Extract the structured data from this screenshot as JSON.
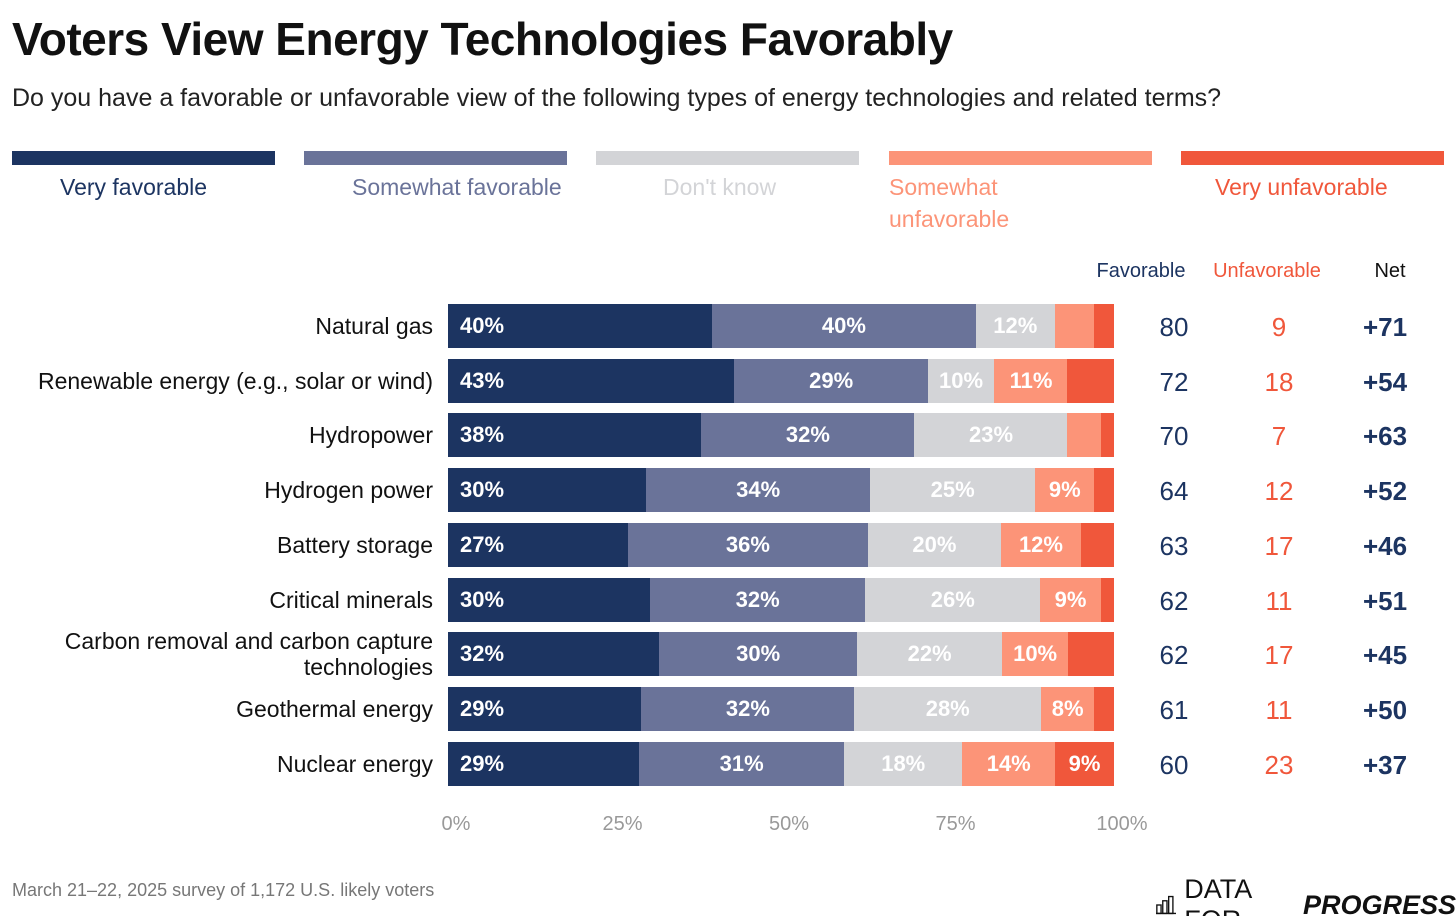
{
  "title": "Voters View Energy Technologies Favorably",
  "subtitle": "Do you have a favorable or unfavorable view of the following types of energy technologies and related terms?",
  "footer": "March 21–22, 2025 survey of 1,172 U.S. likely voters",
  "logo": {
    "icon": "bar-chart-icon",
    "text_plain": "DATA FOR",
    "text_bold": "PROGRESS"
  },
  "columns": {
    "favorable": "Favorable",
    "unfavorable": "Unfavorable",
    "net": "Net"
  },
  "chart_data": {
    "type": "stacked-bar-horizontal",
    "title": "Voters View Energy Technologies Favorably",
    "xlim": [
      0,
      100
    ],
    "xticks": [
      "0%",
      "25%",
      "50%",
      "75%",
      "100%"
    ],
    "legend_placement": "top",
    "series": [
      {
        "name": "Very favorable",
        "color": "#1c3461"
      },
      {
        "name": "Somewhat favorable",
        "color": "#6a7399"
      },
      {
        "name": "Don't know",
        "color": "#d3d4d7"
      },
      {
        "name": "Somewhat unfavorable",
        "color": "#fc9478"
      },
      {
        "name": "Very unfavorable",
        "color": "#f0573b"
      }
    ],
    "rows": [
      {
        "label": "Natural gas",
        "values": [
          40,
          40,
          12,
          6,
          3
        ],
        "favorable": "80",
        "unfavorable": "9",
        "net": "+71"
      },
      {
        "label": "Renewable energy (e.g., solar or wind)",
        "values": [
          43,
          29,
          10,
          11,
          7
        ],
        "favorable": "72",
        "unfavorable": "18",
        "net": "+54"
      },
      {
        "label": "Hydropower",
        "values": [
          38,
          32,
          23,
          5,
          2
        ],
        "favorable": "70",
        "unfavorable": "7",
        "net": "+63"
      },
      {
        "label": "Hydrogen power",
        "values": [
          30,
          34,
          25,
          9,
          3
        ],
        "favorable": "64",
        "unfavorable": "12",
        "net": "+52"
      },
      {
        "label": "Battery storage",
        "values": [
          27,
          36,
          20,
          12,
          5
        ],
        "favorable": "63",
        "unfavorable": "17",
        "net": "+46"
      },
      {
        "label": "Critical minerals",
        "values": [
          30,
          32,
          26,
          9,
          2
        ],
        "favorable": "62",
        "unfavorable": "11",
        "net": "+51"
      },
      {
        "label": "Carbon removal and carbon capture technologies",
        "values": [
          32,
          30,
          22,
          10,
          7
        ],
        "favorable": "62",
        "unfavorable": "17",
        "net": "+45"
      },
      {
        "label": "Geothermal energy",
        "values": [
          29,
          32,
          28,
          8,
          3
        ],
        "favorable": "61",
        "unfavorable": "11",
        "net": "+50"
      },
      {
        "label": "Nuclear energy",
        "values": [
          29,
          31,
          18,
          14,
          9
        ],
        "favorable": "60",
        "unfavorable": "23",
        "net": "+37"
      }
    ]
  }
}
